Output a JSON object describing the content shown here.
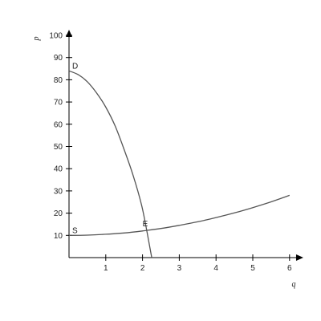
{
  "chart_data": {
    "type": "line",
    "title": "",
    "xlabel": "q",
    "ylabel": "p",
    "xlim": [
      0,
      6.2
    ],
    "ylim": [
      0,
      100
    ],
    "x_ticks": [
      1,
      2,
      3,
      4,
      5,
      6
    ],
    "y_ticks": [
      10,
      20,
      30,
      40,
      50,
      60,
      70,
      80,
      90,
      100
    ],
    "grid": false,
    "series": [
      {
        "name": "D",
        "x": [
          0,
          0.25,
          0.5,
          0.75,
          1.0,
          1.25,
          1.5,
          1.75,
          2.0,
          2.25
        ],
        "y": [
          84,
          82.3,
          79.1,
          74.1,
          67.7,
          59.4,
          48.6,
          36.7,
          21.8,
          0
        ],
        "color": "#555555"
      },
      {
        "name": "S",
        "x": [
          0,
          0.5,
          1,
          1.5,
          2,
          2.5,
          3,
          3.5,
          4,
          4.5,
          5,
          5.5,
          6
        ],
        "y": [
          10,
          10.1,
          10.5,
          11.1,
          12,
          13.1,
          14.5,
          16.1,
          18,
          20.1,
          22.5,
          25.1,
          28
        ],
        "color": "#555555"
      }
    ],
    "annotations": [
      {
        "text": "E",
        "x": 2.0,
        "y": 12
      }
    ]
  }
}
